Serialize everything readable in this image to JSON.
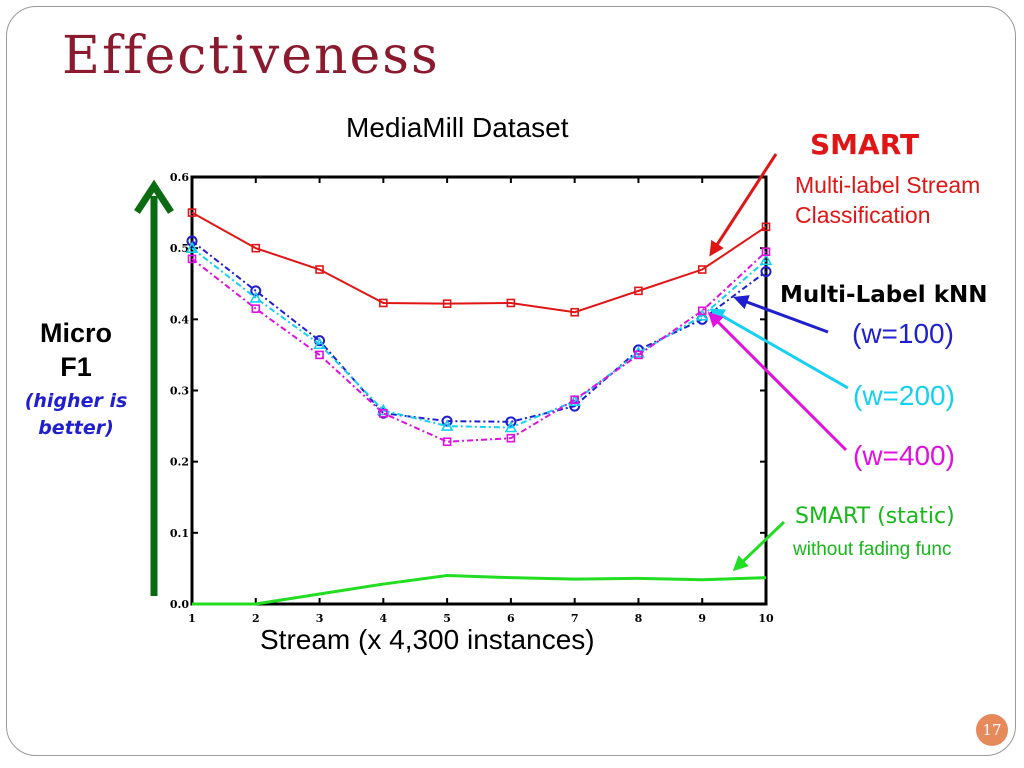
{
  "slide": {
    "title": "Effectiveness",
    "page_number": "17"
  },
  "ylabel": {
    "metric_line1": "Micro",
    "metric_line2": "F1",
    "note_line1": "(higher is",
    "note_line2": "better)"
  },
  "annotations": {
    "smart_title": "SMART",
    "smart_sub_line1": "Multi-label Stream",
    "smart_sub_line2": "Classification",
    "mlknn": "Multi-Label kNN",
    "w100": "(w=100)",
    "w200": "(w=200)",
    "w400": "(w=400)",
    "static_title": "SMART (static)",
    "static_sub": "without fading func"
  },
  "colors": {
    "title": "#8b1a2e",
    "smart": "#e01515",
    "w100": "#1f1fd0",
    "w200": "#15d0f0",
    "w400": "#e010e0",
    "static": "#22dd22",
    "better_arrow": "#0b6b12",
    "badge": "#e68a5c"
  },
  "chart_data": {
    "type": "line",
    "title": "MediaMill Dataset",
    "xlabel": "Stream (x 4,300 instances)",
    "ylabel": "",
    "x": [
      1,
      2,
      3,
      4,
      5,
      6,
      7,
      8,
      9,
      10
    ],
    "xlim": [
      1,
      10
    ],
    "ylim": [
      0,
      0.6
    ],
    "y_ticks": [
      "0.0",
      "0.1",
      "0.2",
      "0.3",
      "0.4",
      "0.5",
      "0.6"
    ],
    "x_ticks": [
      "1",
      "2",
      "3",
      "4",
      "5",
      "6",
      "7",
      "8",
      "9",
      "10"
    ],
    "grid": false,
    "legend": "none",
    "series": [
      {
        "key": "smart",
        "color": "#e01515",
        "marker": "square",
        "values": [
          0.55,
          0.5,
          0.47,
          0.423,
          0.422,
          0.423,
          0.41,
          0.44,
          0.47,
          0.53
        ]
      },
      {
        "key": "w100",
        "color": "#1f1fd0",
        "marker": "circle",
        "dash": "6,3,2,3",
        "values": [
          0.51,
          0.44,
          0.37,
          0.268,
          0.257,
          0.256,
          0.278,
          0.357,
          0.4,
          0.467
        ]
      },
      {
        "key": "w200",
        "color": "#15d0f0",
        "marker": "triangle",
        "dash": "6,3,2,3",
        "values": [
          0.5,
          0.43,
          0.365,
          0.272,
          0.25,
          0.248,
          0.285,
          0.353,
          0.405,
          0.483
        ]
      },
      {
        "key": "w400",
        "color": "#e010e0",
        "marker": "square",
        "dash": "6,3,2,3",
        "values": [
          0.485,
          0.415,
          0.35,
          0.268,
          0.228,
          0.233,
          0.287,
          0.35,
          0.412,
          0.495
        ]
      },
      {
        "key": "static",
        "color": "#22dd22",
        "marker": "none",
        "values": [
          0.0,
          0.0,
          0.014,
          0.028,
          0.04,
          0.037,
          0.035,
          0.036,
          0.034,
          0.037
        ]
      }
    ]
  }
}
